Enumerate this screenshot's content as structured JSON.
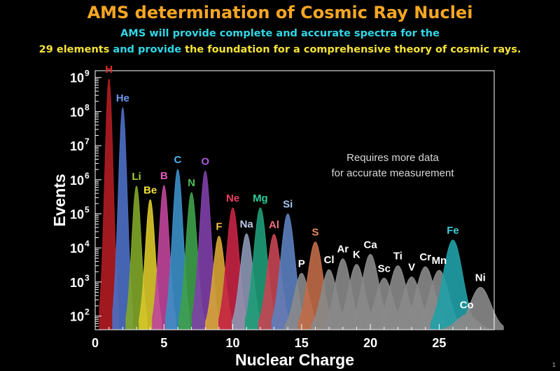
{
  "header": {
    "title": "AMS determination of Cosmic Ray Nuclei",
    "subtitle1": "AMS will provide complete and accurate spectra for the",
    "subtitle2_part1": "29 elements",
    "subtitle2_part2": " and provide ",
    "subtitle2_part3": "the foundation for a comprehensive theory of cosmic rays."
  },
  "slide_number": "1",
  "chart_data": {
    "type": "area",
    "title": "AMS determination of Cosmic Ray Nuclei",
    "xlabel": "Nuclear Charge",
    "ylabel": "Events",
    "xlim": [
      0,
      29
    ],
    "ylim_log10": [
      1.6,
      9.2
    ],
    "log_y": true,
    "x_ticks": [
      0,
      5,
      10,
      15,
      20,
      25
    ],
    "x_tick_labels": [
      "0",
      "5",
      "10",
      "15",
      "20",
      "25"
    ],
    "y_ticks_log10": [
      2,
      3,
      4,
      5,
      6,
      7,
      8,
      9
    ],
    "y_tick_labels": [
      {
        "base": "10",
        "exp": "2"
      },
      {
        "base": "10",
        "exp": "3"
      },
      {
        "base": "10",
        "exp": "4"
      },
      {
        "base": "10",
        "exp": "5"
      },
      {
        "base": "10",
        "exp": "6"
      },
      {
        "base": "10",
        "exp": "7"
      },
      {
        "base": "10",
        "exp": "8"
      },
      {
        "base": "10",
        "exp": "9"
      }
    ],
    "annotation": [
      "Requires more data",
      "for accurate measurement"
    ],
    "series": [
      {
        "name": "H",
        "charge": 1,
        "peak": 900000000,
        "color": "#b01c22",
        "label_color": "#e02a2a"
      },
      {
        "name": "He",
        "charge": 2,
        "peak": 130000000,
        "color": "#4d6fc4",
        "label_color": "#6f97f0"
      },
      {
        "name": "Li",
        "charge": 3,
        "peak": 650000,
        "color": "#7fa629",
        "label_color": "#a8d63a"
      },
      {
        "name": "Be",
        "charge": 4,
        "peak": 260000,
        "color": "#d9c82a",
        "label_color": "#f2e13a"
      },
      {
        "name": "B",
        "charge": 5,
        "peak": 680000,
        "color": "#c0459b",
        "label_color": "#e65ac0"
      },
      {
        "name": "C",
        "charge": 6,
        "peak": 2000000,
        "color": "#3b8fc8",
        "label_color": "#4fb3ee"
      },
      {
        "name": "N",
        "charge": 7,
        "peak": 420000,
        "color": "#3ea04a",
        "label_color": "#4cc15a"
      },
      {
        "name": "O",
        "charge": 8,
        "peak": 1800000,
        "color": "#7f3fa8",
        "label_color": "#b05adf"
      },
      {
        "name": "F",
        "charge": 9,
        "peak": 22000,
        "color": "#d8a536",
        "label_color": "#f4be44"
      },
      {
        "name": "Ne",
        "charge": 10,
        "peak": 150000,
        "color": "#c72444",
        "label_color": "#ef3e63"
      },
      {
        "name": "Na",
        "charge": 11,
        "peak": 26000,
        "color": "#8d97b5",
        "label_color": "#c0c9e6"
      },
      {
        "name": "Mg",
        "charge": 12,
        "peak": 150000,
        "color": "#1f9c78",
        "label_color": "#2ecc9c"
      },
      {
        "name": "Al",
        "charge": 13,
        "peak": 25000,
        "color": "#c64553",
        "label_color": "#f0707a"
      },
      {
        "name": "Si",
        "charge": 14,
        "peak": 100000,
        "color": "#5c7fbf",
        "label_color": "#a7c7f2"
      },
      {
        "name": "P",
        "charge": 15,
        "peak": 1800,
        "color": "#8a8a8a",
        "label_color": "#ffffff"
      },
      {
        "name": "S",
        "charge": 16,
        "peak": 15000,
        "color": "#c06c47",
        "label_color": "#f08d5a"
      },
      {
        "name": "Cl",
        "charge": 17,
        "peak": 2300,
        "color": "#8a8a8a",
        "label_color": "#ffffff"
      },
      {
        "name": "Ar",
        "charge": 18,
        "peak": 4800,
        "color": "#8a8a8a",
        "label_color": "#ffffff"
      },
      {
        "name": "K",
        "charge": 19,
        "peak": 3300,
        "color": "#8a8a8a",
        "label_color": "#ffffff"
      },
      {
        "name": "Ca",
        "charge": 20,
        "peak": 6500,
        "color": "#8a8a8a",
        "label_color": "#ffffff"
      },
      {
        "name": "Sc",
        "charge": 21,
        "peak": 1300,
        "color": "#8a8a8a",
        "label_color": "#ffffff"
      },
      {
        "name": "Ti",
        "charge": 22,
        "peak": 3000,
        "color": "#8a8a8a",
        "label_color": "#ffffff"
      },
      {
        "name": "V",
        "charge": 23,
        "peak": 1400,
        "color": "#8a8a8a",
        "label_color": "#ffffff"
      },
      {
        "name": "Cr",
        "charge": 24,
        "peak": 2800,
        "color": "#8a8a8a",
        "label_color": "#ffffff"
      },
      {
        "name": "Mn",
        "charge": 25,
        "peak": 2200,
        "color": "#8a8a8a",
        "label_color": "#ffffff"
      },
      {
        "name": "Fe",
        "charge": 26,
        "peak": 17000,
        "color": "#20a0a8",
        "label_color": "#3fd0d8"
      },
      {
        "name": "Co",
        "charge": 27,
        "peak": 110,
        "color": "#8a8a8a",
        "label_color": "#ffffff"
      },
      {
        "name": "Ni",
        "charge": 28,
        "peak": 700,
        "color": "#8a8a8a",
        "label_color": "#ffffff"
      }
    ]
  }
}
